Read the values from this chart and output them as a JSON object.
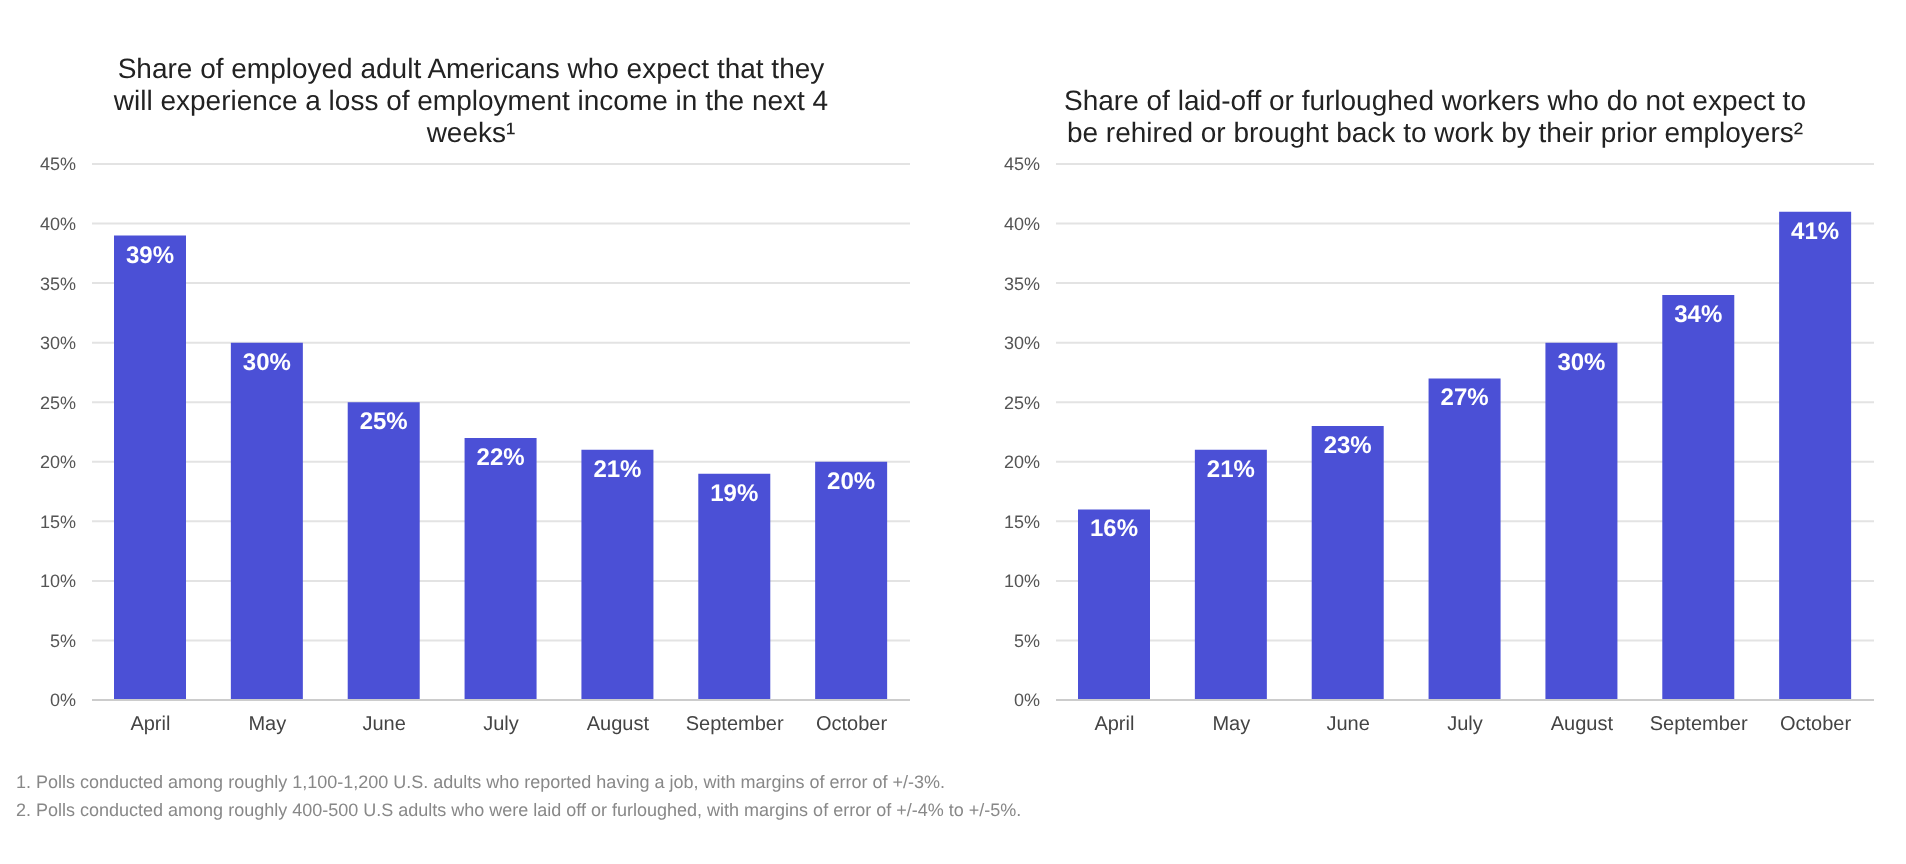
{
  "chart_data": [
    {
      "type": "bar",
      "title": "Share of employed adult Americans who expect that they will experience a loss of employment income in the next 4 weeks¹",
      "categories": [
        "April",
        "May",
        "June",
        "July",
        "August",
        "September",
        "October"
      ],
      "values": [
        39,
        30,
        25,
        22,
        21,
        19,
        20
      ],
      "color": "#4b50d6",
      "value_labels": [
        "39%",
        "30%",
        "25%",
        "22%",
        "21%",
        "19%",
        "20%"
      ],
      "ylim": [
        0,
        45
      ],
      "yticks": [
        {
          "value": 0,
          "label": "0%"
        },
        {
          "value": 5,
          "label": "5%"
        },
        {
          "value": 10,
          "label": "10%"
        },
        {
          "value": 15,
          "label": "15%"
        },
        {
          "value": 20,
          "label": "20%"
        },
        {
          "value": 25,
          "label": "25%"
        },
        {
          "value": 30,
          "label": "30%"
        },
        {
          "value": 35,
          "label": "35%"
        },
        {
          "value": 40,
          "label": "40%"
        },
        {
          "value": 45,
          "label": "45%"
        }
      ],
      "grid": "y",
      "annotations": [
        "1. Polls conducted among roughly 1,100-1,200 U.S. adults who reported having a job, with margins of error of +/-3%."
      ]
    },
    {
      "type": "bar",
      "title": "Share of laid-off or furloughed workers who do not expect to be rehired or brought back to work by their prior employers²",
      "categories": [
        "April",
        "May",
        "June",
        "July",
        "August",
        "September",
        "October"
      ],
      "values": [
        16,
        21,
        23,
        27,
        30,
        34,
        41
      ],
      "color": "#4b50d6",
      "value_labels": [
        "16%",
        "21%",
        "23%",
        "27%",
        "30%",
        "34%",
        "41%"
      ],
      "ylim": [
        0,
        45
      ],
      "yticks": [
        {
          "value": 0,
          "label": "0%"
        },
        {
          "value": 5,
          "label": "5%"
        },
        {
          "value": 10,
          "label": "10%"
        },
        {
          "value": 15,
          "label": "15%"
        },
        {
          "value": 20,
          "label": "20%"
        },
        {
          "value": 25,
          "label": "25%"
        },
        {
          "value": 30,
          "label": "30%"
        },
        {
          "value": 35,
          "label": "35%"
        },
        {
          "value": 40,
          "label": "40%"
        },
        {
          "value": 45,
          "label": "45%"
        }
      ],
      "grid": "y",
      "annotations": [
        "2. Polls conducted among roughly 400-500 U.S adults who were laid off or furloughed, with margins of error of +/-4% to +/-5%."
      ]
    }
  ]
}
